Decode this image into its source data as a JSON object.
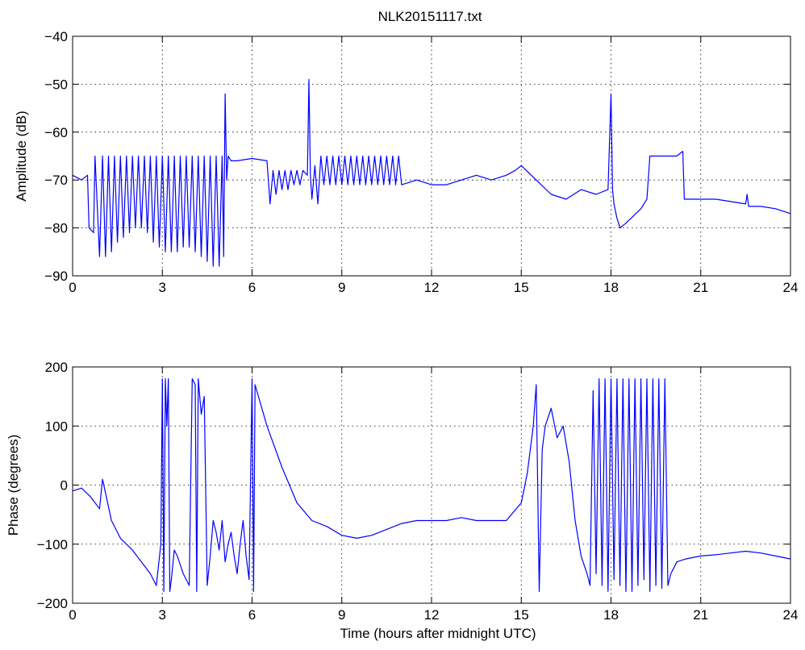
{
  "figure_title": "NLK20151117.txt",
  "chart_data": [
    {
      "type": "line",
      "title": "NLK20151117.txt",
      "xlabel": "",
      "ylabel": "Amplitude (dB)",
      "xlim": [
        0,
        24
      ],
      "ylim": [
        -90,
        -40
      ],
      "xticks": [
        0,
        3,
        6,
        9,
        12,
        15,
        18,
        21,
        24
      ],
      "yticks": [
        -90,
        -80,
        -70,
        -60,
        -50,
        -40
      ],
      "grid": true,
      "color": "#0000ff",
      "series": [
        {
          "x": [
            0.0,
            0.3,
            0.5,
            0.55,
            0.7,
            0.75,
            0.9,
            1.0,
            1.1,
            1.2,
            1.3,
            1.4,
            1.5,
            1.6,
            1.7,
            1.8,
            1.9,
            2.0,
            2.1,
            2.2,
            2.3,
            2.4,
            2.5,
            2.6,
            2.7,
            2.8,
            2.9,
            3.0,
            3.1,
            3.2,
            3.3,
            3.4,
            3.5,
            3.6,
            3.7,
            3.8,
            3.9,
            4.0,
            4.1,
            4.2,
            4.3,
            4.4,
            4.5,
            4.6,
            4.7,
            4.8,
            4.9,
            5.0,
            5.05,
            5.1,
            5.15,
            5.2,
            5.3,
            5.5,
            6.0,
            6.5,
            6.6,
            6.7,
            6.8,
            6.9,
            7.0,
            7.1,
            7.2,
            7.3,
            7.4,
            7.5,
            7.6,
            7.7,
            7.85,
            7.9,
            7.95,
            8.0,
            8.1,
            8.2,
            8.3,
            8.4,
            8.5,
            8.6,
            8.7,
            8.8,
            8.9,
            9.0,
            9.1,
            9.2,
            9.3,
            9.4,
            9.5,
            9.6,
            9.7,
            9.8,
            9.9,
            10.0,
            10.1,
            10.2,
            10.3,
            10.4,
            10.5,
            10.6,
            10.7,
            10.8,
            10.9,
            11.0,
            11.5,
            12.0,
            12.5,
            13.0,
            13.5,
            14.0,
            14.5,
            14.8,
            15.0,
            15.5,
            16.0,
            16.5,
            17.0,
            17.5,
            17.9,
            18.0,
            18.05,
            18.1,
            18.2,
            18.3,
            18.5,
            19.0,
            19.2,
            19.3,
            19.6,
            19.8,
            20.0,
            20.2,
            20.4,
            20.45,
            20.5,
            21.0,
            21.5,
            22.0,
            22.5,
            22.55,
            22.6,
            23.0,
            23.5,
            24.0
          ],
          "y": [
            -69,
            -70,
            -69,
            -80,
            -81,
            -65,
            -86,
            -65,
            -86,
            -65,
            -85,
            -65,
            -83,
            -65,
            -82,
            -65,
            -81,
            -65,
            -80,
            -65,
            -80,
            -65,
            -81,
            -65,
            -83,
            -65,
            -84,
            -65,
            -85,
            -65,
            -85,
            -65,
            -85,
            -65,
            -84,
            -65,
            -84,
            -65,
            -85,
            -65,
            -86,
            -65,
            -87,
            -65,
            -88,
            -65,
            -88,
            -65,
            -86,
            -52,
            -70,
            -65,
            -66,
            -66,
            -65.5,
            -66,
            -75,
            -68,
            -73,
            -68,
            -72,
            -68,
            -72,
            -68,
            -71,
            -68,
            -71,
            -68,
            -69,
            -49,
            -69,
            -74,
            -67,
            -75,
            -65,
            -71,
            -65,
            -71,
            -65,
            -71,
            -65,
            -71,
            -65,
            -71,
            -65,
            -71,
            -65,
            -71,
            -65,
            -71,
            -65,
            -71,
            -65,
            -71,
            -65,
            -71,
            -65,
            -71,
            -65,
            -71,
            -65,
            -71,
            -70,
            -71,
            -71,
            -70,
            -69,
            -70,
            -69,
            -68,
            -67,
            -70,
            -73,
            -74,
            -72,
            -73,
            -72,
            -52,
            -72,
            -75,
            -78,
            -80,
            -79,
            -76,
            -74,
            -65,
            -65,
            -65,
            -65,
            -65,
            -64,
            -74,
            -74,
            -74,
            -74,
            -74.5,
            -75,
            -73,
            -75.5,
            -75.5,
            -76,
            -77
          ]
        }
      ]
    },
    {
      "type": "line",
      "title": "",
      "xlabel": "Time (hours after midnight UTC)",
      "ylabel": "Phase (degrees)",
      "xlim": [
        0,
        24
      ],
      "ylim": [
        -200,
        200
      ],
      "xticks": [
        0,
        3,
        6,
        9,
        12,
        15,
        18,
        21,
        24
      ],
      "yticks": [
        -200,
        -100,
        0,
        100,
        200
      ],
      "grid": true,
      "color": "#0000ff",
      "series": [
        {
          "x": [
            0.0,
            0.3,
            0.6,
            0.9,
            1.0,
            1.3,
            1.6,
            2.0,
            2.3,
            2.6,
            2.8,
            2.95,
            3.0,
            3.05,
            3.1,
            3.15,
            3.2,
            3.25,
            3.3,
            3.4,
            3.5,
            3.7,
            3.9,
            4.0,
            4.1,
            4.15,
            4.2,
            4.3,
            4.4,
            4.5,
            4.6,
            4.7,
            4.8,
            4.9,
            5.0,
            5.1,
            5.2,
            5.3,
            5.4,
            5.5,
            5.6,
            5.7,
            5.8,
            5.9,
            6.0,
            6.05,
            6.1,
            6.5,
            7.0,
            7.5,
            8.0,
            8.5,
            9.0,
            9.5,
            10.0,
            10.5,
            11.0,
            11.5,
            12.0,
            12.5,
            13.0,
            13.5,
            14.0,
            14.5,
            15.0,
            15.2,
            15.4,
            15.5,
            15.6,
            15.7,
            15.8,
            16.0,
            16.2,
            16.4,
            16.6,
            16.8,
            17.0,
            17.2,
            17.3,
            17.4,
            17.5,
            17.6,
            17.7,
            17.8,
            17.9,
            18.0,
            18.1,
            18.2,
            18.3,
            18.4,
            18.5,
            18.6,
            18.7,
            18.8,
            18.9,
            19.0,
            19.1,
            19.2,
            19.3,
            19.4,
            19.5,
            19.6,
            19.7,
            19.8,
            19.9,
            20.0,
            20.2,
            20.5,
            21.0,
            21.5,
            22.0,
            22.5,
            23.0,
            23.5,
            24.0
          ],
          "y": [
            -10,
            -5,
            -20,
            -40,
            10,
            -60,
            -90,
            -110,
            -130,
            -150,
            -170,
            -100,
            180,
            -180,
            180,
            100,
            180,
            -180,
            -160,
            -110,
            -120,
            -150,
            -170,
            180,
            170,
            -180,
            180,
            120,
            150,
            -170,
            -120,
            -60,
            -80,
            -110,
            -60,
            -130,
            -100,
            -80,
            -120,
            -150,
            -100,
            -60,
            -120,
            -160,
            180,
            -180,
            170,
            100,
            30,
            -30,
            -60,
            -70,
            -85,
            -90,
            -85,
            -75,
            -65,
            -60,
            -60,
            -60,
            -55,
            -60,
            -60,
            -60,
            -30,
            20,
            100,
            170,
            -180,
            60,
            100,
            130,
            80,
            100,
            40,
            -60,
            -120,
            -150,
            -170,
            160,
            -150,
            180,
            -170,
            180,
            -180,
            180,
            -160,
            180,
            -170,
            180,
            -180,
            180,
            -180,
            180,
            -170,
            180,
            -160,
            180,
            -180,
            180,
            -170,
            180,
            -175,
            180,
            -170,
            -150,
            -130,
            -125,
            -120,
            -118,
            -115,
            -112,
            -115,
            -120,
            -125
          ]
        }
      ]
    }
  ]
}
